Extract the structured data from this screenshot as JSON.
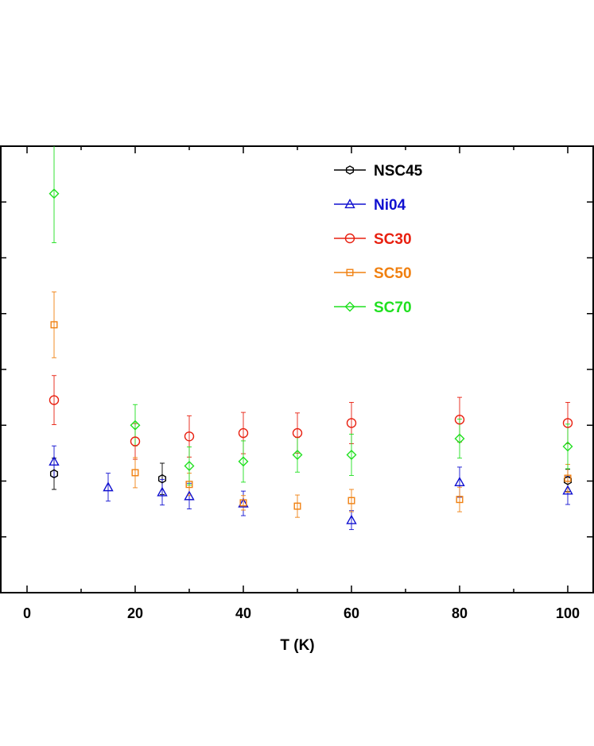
{
  "chart_data": {
    "type": "scatter",
    "title": "",
    "xlabel": "T (K)",
    "ylabel": "",
    "xlim": [
      -5,
      105
    ],
    "ylim": [
      0,
      8
    ],
    "x_ticks": [
      0,
      20,
      40,
      60,
      80,
      100
    ],
    "x_tick_labels": [
      "0",
      "20",
      "40",
      "60",
      "80",
      "100"
    ],
    "y_ticks": [
      1,
      2,
      3,
      4,
      5,
      6,
      7,
      8
    ],
    "y_tick_labels": [],
    "x_minor_ticks": [
      10,
      30,
      50,
      70,
      90
    ],
    "grid": false,
    "legend_position": "top-center",
    "series": [
      {
        "name": "NSC45",
        "color": "#000000",
        "marker": "hexagon",
        "x": [
          5,
          25,
          100
        ],
        "y": [
          2.13,
          2.04,
          2.01
        ],
        "err": [
          0.28,
          0.28,
          0.2
        ]
      },
      {
        "name": "Ni04",
        "color": "#1010d0",
        "marker": "triangle",
        "x": [
          5,
          15,
          25,
          30,
          40,
          60,
          80,
          100
        ],
        "y": [
          2.35,
          1.89,
          1.8,
          1.73,
          1.6,
          1.3,
          1.98,
          1.83
        ],
        "err": [
          0.28,
          0.25,
          0.23,
          0.23,
          0.22,
          0.17,
          0.27,
          0.25
        ]
      },
      {
        "name": "SC30",
        "color": "#e82010",
        "marker": "circle",
        "x": [
          5,
          20,
          30,
          40,
          50,
          60,
          80,
          100
        ],
        "y": [
          3.45,
          2.71,
          2.8,
          2.86,
          2.86,
          3.04,
          3.1,
          3.04
        ],
        "err": [
          0.44,
          0.32,
          0.37,
          0.37,
          0.36,
          0.37,
          0.4,
          0.37
        ]
      },
      {
        "name": "SC50",
        "color": "#f08010",
        "marker": "square",
        "x": [
          5,
          20,
          30,
          40,
          50,
          60,
          80,
          100
        ],
        "y": [
          4.8,
          2.15,
          1.94,
          1.61,
          1.55,
          1.65,
          1.67,
          2.05
        ],
        "err": [
          0.59,
          0.27,
          0.2,
          0.13,
          0.2,
          0.2,
          0.22,
          0.25
        ]
      },
      {
        "name": "SC70",
        "color": "#20e020",
        "marker": "diamond",
        "x": [
          5,
          20,
          30,
          40,
          50,
          60,
          80,
          100
        ],
        "y": [
          7.15,
          3.0,
          2.27,
          2.35,
          2.47,
          2.47,
          2.76,
          2.62
        ],
        "err": [
          0.88,
          0.37,
          0.34,
          0.37,
          0.31,
          0.37,
          0.35,
          0.4
        ]
      }
    ]
  }
}
